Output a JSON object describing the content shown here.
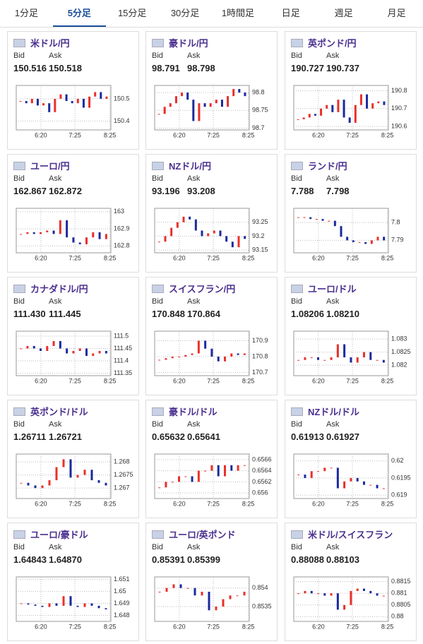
{
  "tabs": [
    "1分足",
    "5分足",
    "15分足",
    "30分足",
    "1時間足",
    "日足",
    "週足",
    "月足"
  ],
  "active_tab": 1,
  "labels": {
    "bid": "Bid",
    "ask": "Ask"
  },
  "x_labels": [
    "6:20",
    "7:25",
    "8:25"
  ],
  "panels": [
    {
      "title": "米ドル/円",
      "bid": "150.516",
      "ask": "150.518",
      "ylim": [
        150.36,
        150.56
      ],
      "yticks": [
        150.5,
        150.4
      ],
      "values": [
        150.49,
        150.48,
        150.5,
        150.47,
        150.48,
        150.44,
        150.5,
        150.52,
        150.49,
        150.48,
        150.5,
        150.46,
        150.51,
        150.53,
        150.5,
        150.51
      ]
    },
    {
      "title": "豪ドル/円",
      "bid": "98.791",
      "ask": "98.798",
      "ylim": [
        98.695,
        98.82
      ],
      "yticks": [
        98.8,
        98.75,
        98.7
      ],
      "values": [
        98.74,
        98.76,
        98.77,
        98.79,
        98.8,
        98.78,
        98.72,
        98.77,
        98.76,
        98.77,
        98.78,
        98.76,
        98.79,
        98.81,
        98.8,
        98.79
      ]
    },
    {
      "title": "英ポンド/円",
      "bid": "190.727",
      "ask": "190.737",
      "ylim": [
        190.58,
        190.83
      ],
      "yticks": [
        190.8,
        190.7,
        190.6
      ],
      "values": [
        190.64,
        190.65,
        190.67,
        190.66,
        190.7,
        190.72,
        190.68,
        190.75,
        190.65,
        190.62,
        190.72,
        190.78,
        190.7,
        190.73,
        190.74,
        190.72
      ]
    },
    {
      "title": "ユーロ/円",
      "bid": "162.867",
      "ask": "162.872",
      "ylim": [
        162.76,
        163.02
      ],
      "yticks": [
        163,
        162.9,
        162.8
      ],
      "values": [
        162.87,
        162.88,
        162.87,
        162.88,
        162.89,
        162.87,
        162.95,
        162.85,
        162.82,
        162.81,
        162.85,
        162.88,
        162.84,
        162.87
      ]
    },
    {
      "title": "NZドル/円",
      "bid": "93.196",
      "ask": "93.208",
      "ylim": [
        93.14,
        93.3
      ],
      "yticks": [
        93.25,
        93.2,
        93.15
      ],
      "values": [
        93.18,
        93.2,
        93.23,
        93.25,
        93.27,
        93.26,
        93.22,
        93.2,
        93.21,
        93.22,
        93.2,
        93.18,
        93.16,
        93.2,
        93.19
      ]
    },
    {
      "title": "ランド/円",
      "bid": "7.788",
      "ask": "7.798",
      "ylim": [
        7.783,
        7.808
      ],
      "yticks": [
        7.8,
        7.79
      ],
      "values": [
        7.803,
        7.803,
        7.802,
        7.802,
        7.801,
        7.801,
        7.798,
        7.792,
        7.79,
        7.789,
        7.789,
        7.788,
        7.79,
        7.792,
        7.79
      ]
    },
    {
      "title": "カナダドル/円",
      "bid": "111.430",
      "ask": "111.445",
      "ylim": [
        111.34,
        111.52
      ],
      "yticks": [
        111.5,
        111.45,
        111.4,
        111.35
      ],
      "values": [
        111.45,
        111.46,
        111.45,
        111.44,
        111.46,
        111.48,
        111.45,
        111.43,
        111.44,
        111.45,
        111.42,
        111.43,
        111.44,
        111.43
      ]
    },
    {
      "title": "スイスフラン/円",
      "bid": "170.848",
      "ask": "170.864",
      "ylim": [
        170.68,
        170.96
      ],
      "yticks": [
        170.9,
        170.8,
        170.7
      ],
      "values": [
        170.78,
        170.79,
        170.8,
        170.8,
        170.81,
        170.82,
        170.9,
        170.85,
        170.8,
        170.77,
        170.8,
        170.82,
        170.81,
        170.82
      ]
    },
    {
      "title": "ユーロ/ドル",
      "bid": "1.08206",
      "ask": "1.08210",
      "ylim": [
        1.0816,
        1.0833
      ],
      "yticks": [
        1.083,
        1.0825,
        1.082
      ],
      "values": [
        1.0822,
        1.0823,
        1.0823,
        1.0822,
        1.0822,
        1.0823,
        1.0828,
        1.0823,
        1.0821,
        1.0823,
        1.0825,
        1.0822,
        1.0822,
        1.0821
      ]
    },
    {
      "title": "英ポンド/ドル",
      "bid": "1.26711",
      "ask": "1.26721",
      "ylim": [
        1.2666,
        1.2683
      ],
      "yticks": [
        1.268,
        1.2675,
        1.267
      ],
      "values": [
        1.2672,
        1.2671,
        1.267,
        1.2671,
        1.2673,
        1.2678,
        1.2681,
        1.2674,
        1.2675,
        1.2677,
        1.2673,
        1.2672,
        1.2671
      ]
    },
    {
      "title": "豪ドル/ドル",
      "bid": "0.65632",
      "ask": "0.65641",
      "ylim": [
        0.6559,
        0.6567
      ],
      "yticks": [
        0.6566,
        0.6564,
        0.6562,
        0.656
      ],
      "values": [
        0.6561,
        0.6562,
        0.6562,
        0.6563,
        0.6563,
        0.6562,
        0.6564,
        0.6564,
        0.6565,
        0.6563,
        0.6565,
        0.6564,
        0.6565,
        0.6565
      ]
    },
    {
      "title": "NZドル/ドル",
      "bid": "0.61913",
      "ask": "0.61927",
      "ylim": [
        0.6189,
        0.6202
      ],
      "yticks": [
        0.62,
        0.6195,
        0.619
      ],
      "values": [
        0.6196,
        0.6195,
        0.6197,
        0.6197,
        0.6198,
        0.6198,
        0.6192,
        0.6194,
        0.6195,
        0.6194,
        0.6193,
        0.6193,
        0.6192,
        0.6192
      ]
    },
    {
      "title": "ユーロ/豪ドル",
      "bid": "1.64843",
      "ask": "1.64870",
      "ylim": [
        1.6475,
        1.6512
      ],
      "yticks": [
        1.651,
        1.65,
        1.649,
        1.648
      ],
      "values": [
        1.649,
        1.6489,
        1.6488,
        1.6487,
        1.649,
        1.6488,
        1.6496,
        1.6488,
        1.6487,
        1.649,
        1.6488,
        1.6486,
        1.6485
      ]
    },
    {
      "title": "ユーロ/英ポンド",
      "bid": "0.85391",
      "ask": "0.85399",
      "ylim": [
        0.8531,
        0.8543
      ],
      "yticks": [
        0.854,
        0.8535
      ],
      "values": [
        0.8539,
        0.854,
        0.8541,
        0.854,
        0.854,
        0.8538,
        0.8539,
        0.8534,
        0.8535,
        0.8537,
        0.8538,
        0.8538,
        0.8539
      ]
    },
    {
      "title": "米ドル/スイスフラン",
      "bid": "0.88088",
      "ask": "0.88103",
      "ylim": [
        0.8798,
        0.8817
      ],
      "yticks": [
        0.8815,
        0.881,
        0.8805,
        0.88
      ],
      "values": [
        0.881,
        0.8811,
        0.881,
        0.881,
        0.8809,
        0.881,
        0.8803,
        0.8805,
        0.8811,
        0.8812,
        0.8811,
        0.881,
        0.8809,
        0.8809
      ]
    }
  ]
}
